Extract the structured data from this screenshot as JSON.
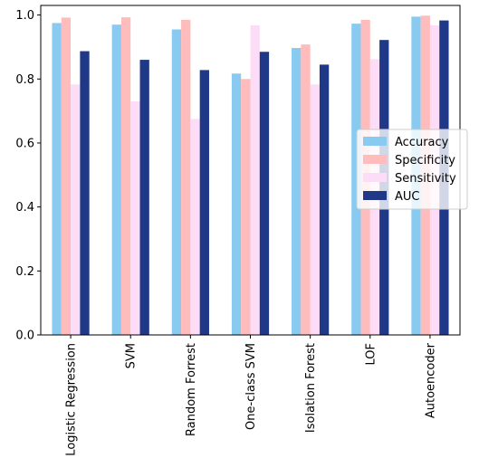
{
  "chart_data": {
    "type": "bar",
    "categories": [
      "Logistic Regression",
      "SVM",
      "Random Forrest",
      "One-class SVM",
      "Isolation Forest",
      "LOF",
      "Autoencoder"
    ],
    "series": [
      {
        "name": "Accuracy",
        "color": "#89cbf0",
        "values": [
          0.975,
          0.97,
          0.955,
          0.817,
          0.897,
          0.973,
          0.995
        ]
      },
      {
        "name": "Specificity",
        "color": "#ffbcbc",
        "values": [
          0.992,
          0.993,
          0.985,
          0.8,
          0.908,
          0.985,
          0.998
        ]
      },
      {
        "name": "Sensitivity",
        "color": "#fcdcf6",
        "values": [
          0.783,
          0.73,
          0.675,
          0.968,
          0.783,
          0.862,
          0.968
        ]
      },
      {
        "name": "AUC",
        "color": "#1f3887",
        "values": [
          0.887,
          0.86,
          0.828,
          0.885,
          0.845,
          0.922,
          0.983
        ]
      }
    ],
    "ylim": [
      0.0,
      1.03
    ],
    "yticks": [
      0.0,
      0.2,
      0.4,
      0.6,
      0.8,
      1.0
    ],
    "ytick_labels": [
      "0.0",
      "0.2",
      "0.4",
      "0.6",
      "0.8",
      "1.0"
    ],
    "xlabel": "",
    "ylabel": "",
    "title": "",
    "grid": false,
    "legend_position": "center-right"
  }
}
